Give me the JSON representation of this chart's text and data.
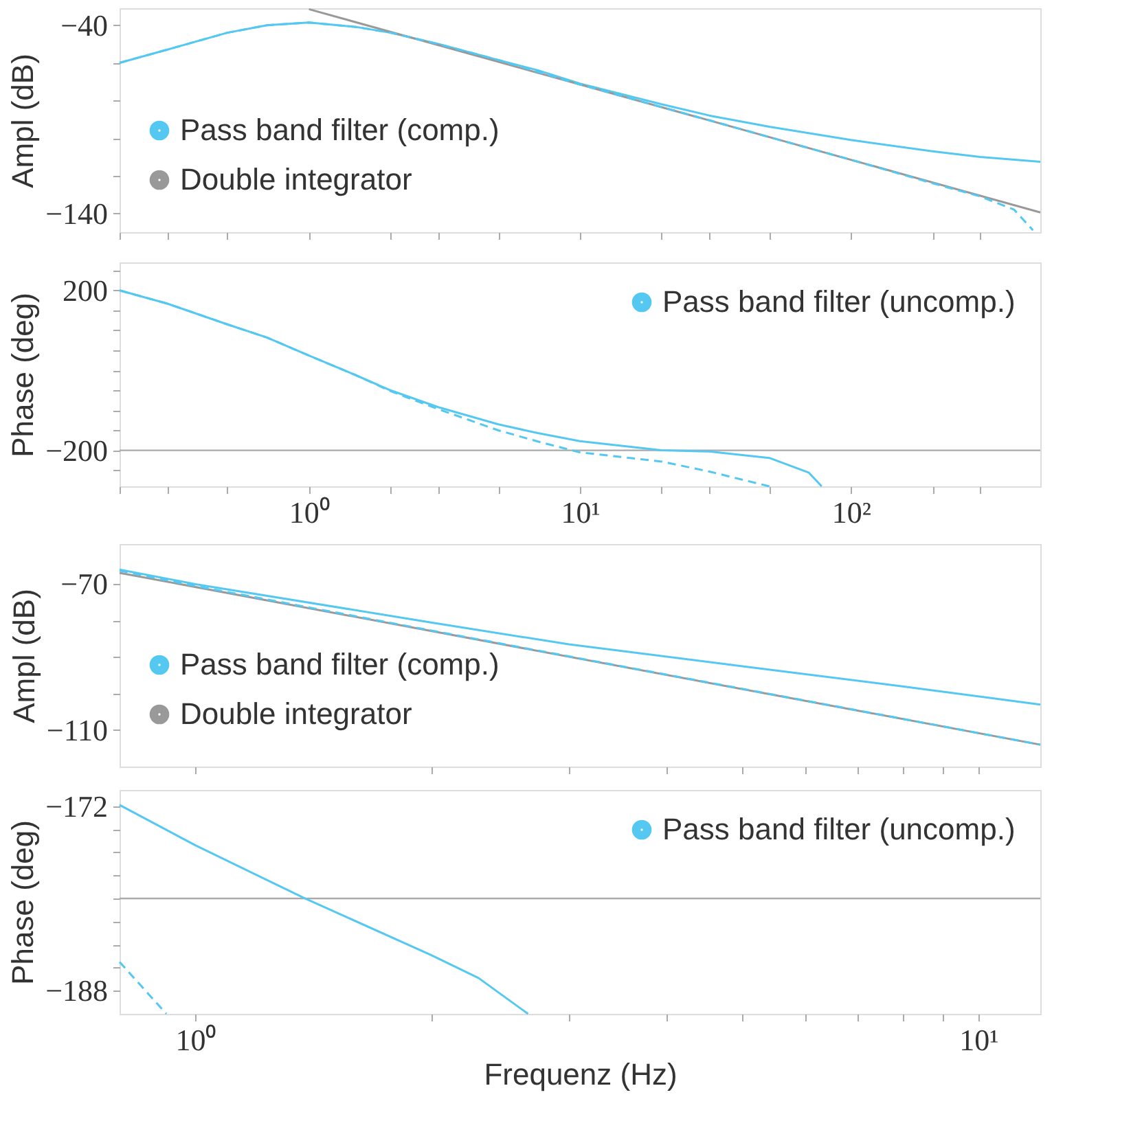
{
  "chart_data": [
    {
      "type": "line",
      "ylabel": "Ampl (dB)",
      "log": "x",
      "legend": "bottom left",
      "tick_labels": "y",
      "xlim": [
        0.2,
        500
      ],
      "ylim": [
        -150,
        -31
      ],
      "xticks": [
        {
          "value": 0.2,
          "label": null
        },
        {
          "value": 0.3,
          "label": null
        },
        {
          "value": 0.5,
          "label": null
        },
        {
          "value": 1,
          "label": null
        },
        {
          "value": 2,
          "label": null
        },
        {
          "value": 3,
          "label": null
        },
        {
          "value": 5,
          "label": null
        },
        {
          "value": 10,
          "label": null
        },
        {
          "value": 20,
          "label": null
        },
        {
          "value": 30,
          "label": null
        },
        {
          "value": 50,
          "label": null
        },
        {
          "value": 100,
          "label": null
        },
        {
          "value": 200,
          "label": null
        },
        {
          "value": 300,
          "label": null
        }
      ],
      "yticks": [
        {
          "value": -40,
          "label": "−40"
        },
        {
          "value": -60,
          "label": null
        },
        {
          "value": -80,
          "label": null
        },
        {
          "value": -100,
          "label": null
        },
        {
          "value": -120,
          "label": null
        },
        {
          "value": -140,
          "label": "−140"
        }
      ],
      "series": [
        {
          "name": "Pass band filter (comp.)",
          "color": "#55c8f2",
          "line_style": "solid",
          "x": [
            0.2,
            0.3,
            0.5,
            0.7,
            1,
            1.5,
            2,
            3,
            5,
            7,
            10,
            20,
            30,
            50,
            100,
            200,
            300,
            500
          ],
          "values": [
            -60,
            -53,
            -44,
            -40,
            -38.6,
            -41,
            -44,
            -50,
            -58.5,
            -64,
            -71,
            -82,
            -88,
            -94,
            -101,
            -107,
            -110,
            -112.6
          ]
        },
        {
          "name": "Double integrator",
          "color": "#999999",
          "line_style": "solid",
          "x": [
            1,
            500
          ],
          "values": [
            -31.5,
            -139.5
          ]
        },
        {
          "color": "#55c8f2",
          "line_style": "dashed",
          "x": [
            0.2,
            0.3,
            0.5,
            0.7,
            1,
            1.5,
            2,
            3,
            5,
            10,
            20,
            30,
            50,
            100,
            200,
            300,
            400,
            470
          ],
          "values": [
            -60,
            -53,
            -44,
            -40,
            -38.6,
            -41,
            -44,
            -50,
            -58.5,
            -71.5,
            -83.5,
            -90.5,
            -99.5,
            -111.5,
            -124,
            -131,
            -138,
            -149
          ]
        }
      ]
    },
    {
      "type": "line",
      "ylabel": "Phase (deg)",
      "log": "x",
      "legend": "top right",
      "xlim": [
        0.2,
        500
      ],
      "ylim": [
        -290,
        270
      ],
      "xticks": [
        {
          "value": 0.2,
          "label": null
        },
        {
          "value": 0.3,
          "label": null
        },
        {
          "value": 0.5,
          "label": null
        },
        {
          "value": 1,
          "label": "10⁰"
        },
        {
          "value": 2,
          "label": null
        },
        {
          "value": 3,
          "label": null
        },
        {
          "value": 5,
          "label": null
        },
        {
          "value": 10,
          "label": "10¹"
        },
        {
          "value": 20,
          "label": null
        },
        {
          "value": 30,
          "label": null
        },
        {
          "value": 50,
          "label": null
        },
        {
          "value": 100,
          "label": "10²"
        },
        {
          "value": 200,
          "label": null
        },
        {
          "value": 300,
          "label": null
        }
      ],
      "yticks": [
        {
          "value": 250,
          "label": null
        },
        {
          "value": 200,
          "label": "200"
        },
        {
          "value": 150,
          "label": null
        },
        {
          "value": 100,
          "label": null
        },
        {
          "value": 50,
          "label": null
        },
        {
          "value": 0,
          "label": null
        },
        {
          "value": -50,
          "label": null
        },
        {
          "value": -100,
          "label": null
        },
        {
          "value": -150,
          "label": null
        },
        {
          "value": -200,
          "label": "−200"
        },
        {
          "value": -250,
          "label": null
        }
      ],
      "ref_lines": [
        {
          "axis": "y",
          "value": -200,
          "color": "#aaaaaa"
        }
      ],
      "series": [
        {
          "color": "#55c8f2",
          "line_style": "solid",
          "x": [
            0.2,
            0.3,
            0.5,
            0.7,
            1,
            1.5,
            2,
            3,
            5,
            7,
            10,
            20,
            30,
            50,
            70,
            78
          ],
          "values": [
            200,
            167,
            115,
            82,
            37,
            -13,
            -50,
            -92,
            -135,
            -157,
            -177,
            -200,
            -203,
            -219,
            -256,
            -290
          ]
        },
        {
          "name": "Pass band filter (uncomp.)",
          "color": "#55c8f2",
          "line_style": "dashed",
          "x": [
            0.2,
            0.3,
            0.5,
            0.7,
            1,
            1.5,
            2,
            3,
            5,
            7,
            10,
            20,
            30,
            50
          ],
          "values": [
            200,
            167,
            115,
            82,
            37,
            -13,
            -52,
            -97,
            -150,
            -178,
            -205,
            -228,
            -253,
            -290
          ]
        }
      ]
    },
    {
      "type": "line",
      "ylabel": "Ampl (dB)",
      "log": "x",
      "legend": "bottom left",
      "tick_labels": "y",
      "xlim": [
        0.8,
        12
      ],
      "ylim": [
        -120,
        -59
      ],
      "xticks": [
        {
          "value": 1,
          "label": null
        },
        {
          "value": 2,
          "label": null
        },
        {
          "value": 3,
          "label": null
        },
        {
          "value": 4,
          "label": null
        },
        {
          "value": 5,
          "label": null
        },
        {
          "value": 6,
          "label": null
        },
        {
          "value": 7,
          "label": null
        },
        {
          "value": 8,
          "label": null
        },
        {
          "value": 9,
          "label": null
        },
        {
          "value": 10,
          "label": null
        }
      ],
      "yticks": [
        {
          "value": -70,
          "label": "−70"
        },
        {
          "value": -80,
          "label": null
        },
        {
          "value": -90,
          "label": null
        },
        {
          "value": -100,
          "label": null
        },
        {
          "value": -110,
          "label": "−110"
        }
      ],
      "series": [
        {
          "name": "Pass band filter (comp.)",
          "color": "#55c8f2",
          "line_style": "solid",
          "x": [
            0.8,
            1,
            2,
            3,
            5,
            8,
            12
          ],
          "values": [
            -66,
            -70,
            -80.5,
            -86.5,
            -92.5,
            -98,
            -103
          ]
        },
        {
          "name": "Double integrator",
          "color": "#999999",
          "line_style": "solid",
          "x": [
            0.8,
            12
          ],
          "values": [
            -66.9,
            -114
          ]
        },
        {
          "color": "#55c8f2",
          "line_style": "dashed",
          "x": [
            0.8,
            1,
            2,
            3,
            5,
            8,
            12
          ],
          "values": [
            -66.3,
            -70.5,
            -82.7,
            -89.8,
            -98.7,
            -106.9,
            -114
          ]
        }
      ]
    },
    {
      "type": "line",
      "ylabel": "Phase (deg)",
      "xlabel": "Frequenz (Hz)",
      "log": "x",
      "legend": "top right",
      "xlim": [
        0.8,
        12
      ],
      "ylim": [
        -190,
        -170.6
      ],
      "xticks": [
        {
          "value": 1,
          "label": "10⁰"
        },
        {
          "value": 2,
          "label": null
        },
        {
          "value": 3,
          "label": null
        },
        {
          "value": 4,
          "label": null
        },
        {
          "value": 5,
          "label": null
        },
        {
          "value": 6,
          "label": null
        },
        {
          "value": 7,
          "label": null
        },
        {
          "value": 8,
          "label": null
        },
        {
          "value": 9,
          "label": null
        },
        {
          "value": 10,
          "label": "10¹"
        }
      ],
      "yticks": [
        {
          "value": -172,
          "label": "−172"
        },
        {
          "value": -174,
          "label": null
        },
        {
          "value": -176,
          "label": null
        },
        {
          "value": -178,
          "label": null
        },
        {
          "value": -180,
          "label": null
        },
        {
          "value": -182,
          "label": null
        },
        {
          "value": -184,
          "label": null
        },
        {
          "value": -186,
          "label": null
        },
        {
          "value": -188,
          "label": "−188"
        }
      ],
      "ref_lines": [
        {
          "axis": "y",
          "value": -180,
          "color": "#aaaaaa"
        }
      ],
      "series": [
        {
          "color": "#55c8f2",
          "line_style": "solid",
          "x": [
            0.8,
            1,
            1.38,
            2,
            2.3,
            2.66
          ],
          "values": [
            -171.9,
            -175.4,
            -180,
            -184.9,
            -186.9,
            -190
          ]
        },
        {
          "name": "Pass band filter (uncomp.)",
          "color": "#55c8f2",
          "line_style": "dashed",
          "x": [
            0.8,
            0.918
          ],
          "values": [
            -185.5,
            -190
          ]
        }
      ]
    }
  ]
}
